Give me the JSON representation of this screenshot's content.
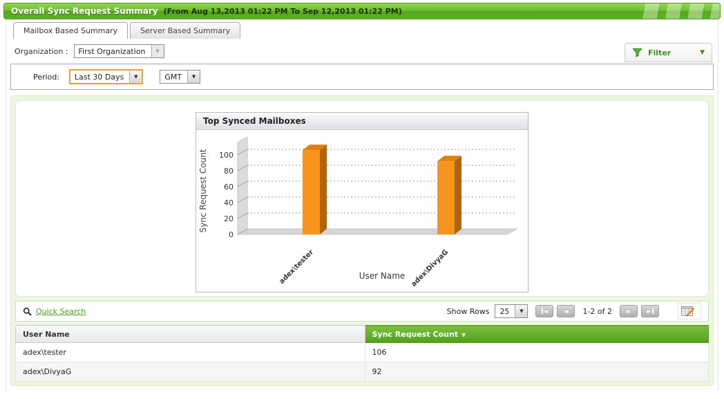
{
  "titlebar": {
    "title": "Overall Sync Request Summary",
    "date_range": "(From Aug 13,2013 01:22 PM To Sep 12,2013 01:22 PM)"
  },
  "tabs": [
    {
      "label": "Mailbox Based Summary",
      "active": true
    },
    {
      "label": "Server Based Summary",
      "active": false
    }
  ],
  "filters": {
    "organization_label": "Organization :",
    "organization_value": "First Organization",
    "filter_button_label": "Filter",
    "period_label": "Period:",
    "period_value": "Last 30 Days",
    "timezone_value": "GMT"
  },
  "chart_data": {
    "type": "bar",
    "style": "3d",
    "title": "Top Synced Mailboxes",
    "categories": [
      "adex\\tester",
      "adex\\DivyaG"
    ],
    "values": [
      106,
      92
    ],
    "xlabel": "User Name",
    "ylabel": "Sync Request Count",
    "ylim": [
      0,
      110
    ],
    "yticks": [
      0,
      20,
      40,
      60,
      80,
      100
    ],
    "grid": true,
    "legend": false,
    "bar_color": "#F6941E"
  },
  "toolbar": {
    "quick_search_label": "Quick Search",
    "show_rows_label": "Show Rows",
    "show_rows_value": "25",
    "page_info": "1-2 of 2"
  },
  "table": {
    "columns": [
      {
        "label": "User Name"
      },
      {
        "label": "Sync Request Count",
        "sort": "desc"
      }
    ],
    "rows": [
      [
        "adex\\tester",
        "106"
      ],
      [
        "adex\\DivyaG",
        "92"
      ]
    ]
  },
  "icons": {
    "select_arrow": "▼",
    "filter_arrow": "▼",
    "sort_desc": "▼",
    "prev": "◄",
    "next": "►"
  },
  "colors": {
    "header_green_top": "#86C93F",
    "header_green_bottom": "#4FA017",
    "accent_green": "#4E9A1C",
    "bar_orange": "#F6941E",
    "table_header_green_top": "#79BE3C",
    "table_header_green_bottom": "#4F9E1A",
    "panel_green_bg": "#EDF7DE"
  }
}
